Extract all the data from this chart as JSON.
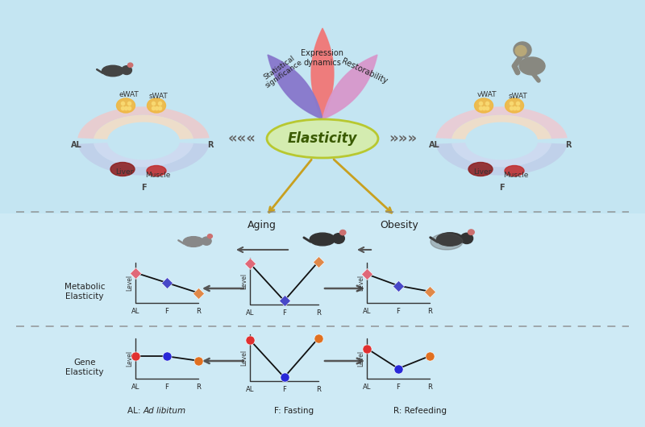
{
  "bg_color": "#ceeaf5",
  "elasticity_text": "Elasticity",
  "elasticity_bg": "#d4ecb0",
  "elasticity_border": "#b8c830",
  "leaf_red_text": "Expression\ndynamics",
  "leaf_blue_text": "Statistical\nsignificance",
  "leaf_pink_text": "Restorability",
  "leaf_red_color": "#f07878",
  "leaf_blue_color": "#8878cc",
  "leaf_pink_color": "#d898cc",
  "arrow_color": "#c8a020",
  "circle_left_outer_pink": "#f0c8c8",
  "circle_left_inner_pink": "#f8dcc0",
  "circle_left_outer_blue": "#c0cce8",
  "circle_left_inner_blue": "#d0d8f0",
  "circle_right_outer_pink": "#f0c8d0",
  "circle_right_inner_pink": "#f8dcc0",
  "circle_right_outer_blue": "#c0cce8",
  "circle_right_inner_blue": "#d0d8f0",
  "aging_label": "Aging",
  "obesity_label": "Obesity",
  "metabolic_elasticity_label": "Metabolic\nElasticity",
  "gene_elasticity_label": "Gene\nElasticity",
  "level_label": "Level",
  "footnote_al": "AL: ",
  "footnote_al_italic": "Ad libitum",
  "footnote_f": "F: Fasting",
  "footnote_r": "R: Refeeding",
  "color_AL_met": "#e06878",
  "color_F_met": "#4848c8",
  "color_R_met": "#e08848",
  "color_AL_gene": "#e03030",
  "color_F_gene": "#2828d8",
  "color_R_gene": "#e07020",
  "dashed_line_color": "#888888",
  "fat_color": "#f0b840",
  "liver_color": "#8b1a1a",
  "muscle_color": "#c02828"
}
